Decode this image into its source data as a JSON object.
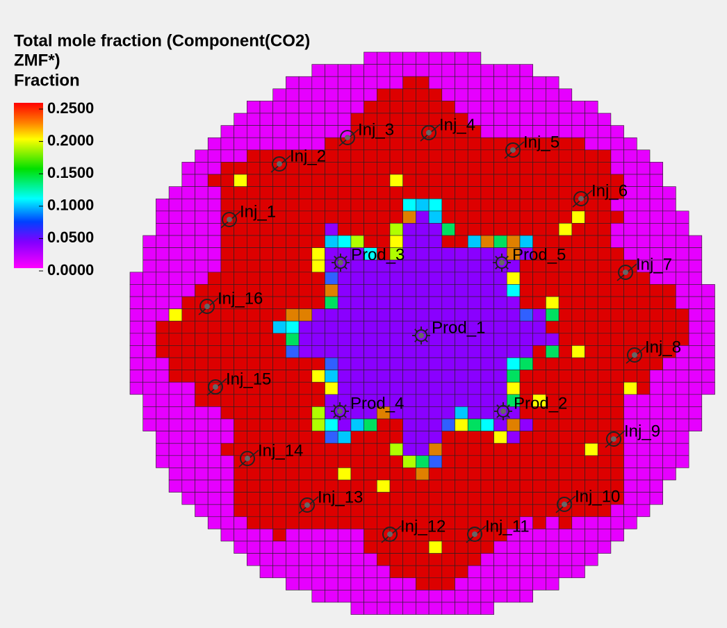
{
  "legend": {
    "title": [
      "Total mole fraction (Component(CO2)",
      "ZMF*)",
      "Fraction"
    ],
    "ticks": [
      "0.2500",
      "0.2000",
      "0.1500",
      "0.1000",
      "0.0500",
      "0.0000"
    ]
  },
  "wells": [
    {
      "label": "Inj_1"
    },
    {
      "label": "Inj_2"
    },
    {
      "label": "Inj_3"
    },
    {
      "label": "Inj_4"
    },
    {
      "label": "Inj_5"
    },
    {
      "label": "Inj_6"
    },
    {
      "label": "Inj_7"
    },
    {
      "label": "Inj_8"
    },
    {
      "label": "Inj_9"
    },
    {
      "label": "Inj_10"
    },
    {
      "label": "Inj_11"
    },
    {
      "label": "Inj_12"
    },
    {
      "label": "Inj_13"
    },
    {
      "label": "Inj_14"
    },
    {
      "label": "Inj_15"
    },
    {
      "label": "Inj_16"
    },
    {
      "label": "Prod_3"
    },
    {
      "label": "Prod_5"
    },
    {
      "label": "Prod_1"
    },
    {
      "label": "Prod_4"
    },
    {
      "label": "Prod_2"
    }
  ]
}
